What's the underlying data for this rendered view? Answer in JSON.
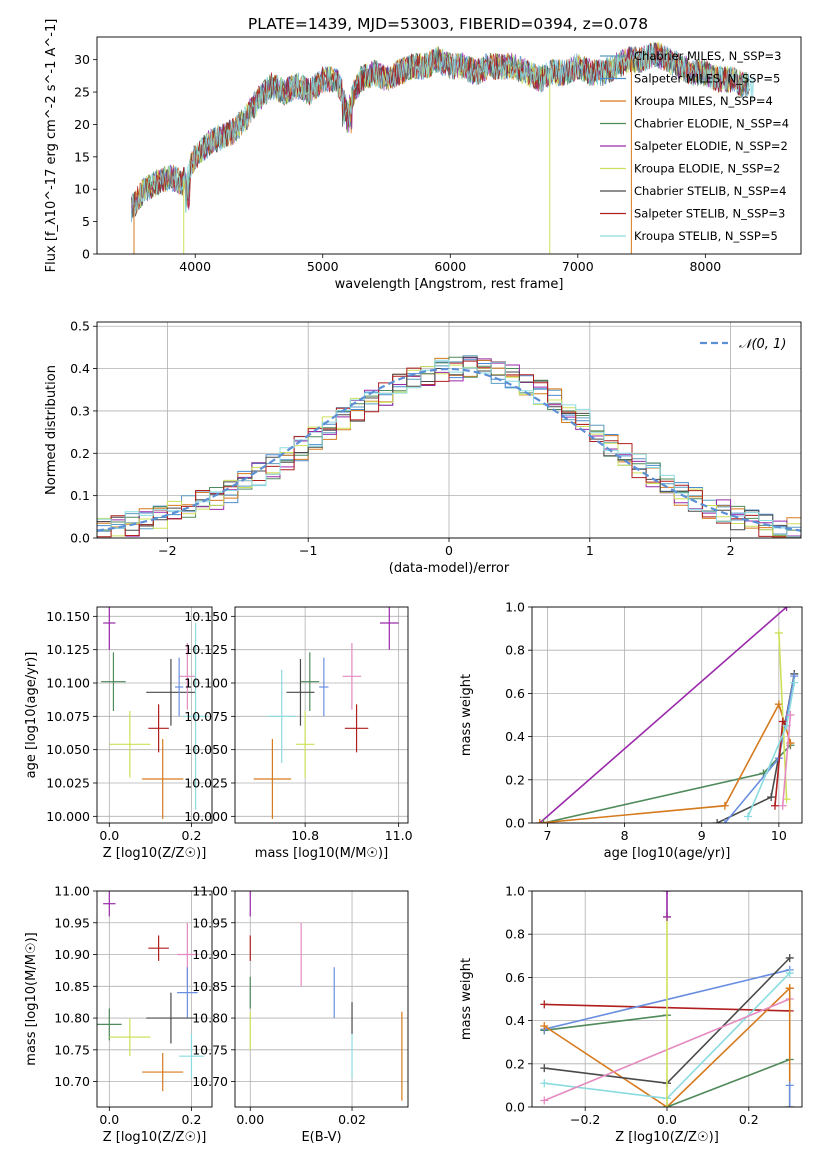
{
  "figure": {
    "title": "PLATE=1439, MJD=53003, FIBERID=0394, z=0.078",
    "colors": {
      "chabrier_miles": "#5b9cc0",
      "salpeter_miles": "#4a8ccf",
      "kroupa_miles": "#d67a1e",
      "chabrier_elodie": "#4f8a5a",
      "salpeter_elodie": "#9a2aaa",
      "kroupa_elodie": "#cfe05a",
      "chabrier_stelib": "#4a4a4a",
      "salpeter_stelib": "#b01e1e",
      "kroupa_stelib": "#8adbe0",
      "pink": "#e58ac0",
      "blue": "#6b8fe0",
      "normal_curve": "#5b8fd6"
    }
  },
  "chart_data": [
    {
      "type": "line",
      "panel": "spectrum",
      "xlabel": "wavelength [Angstrom, rest frame]",
      "ylabel": "Flux [f_λ10^-17 erg cm^-2 s^-1 A^-1]",
      "xlim": [
        3230,
        8750
      ],
      "ylim": [
        0,
        33.5
      ],
      "xticks": [
        "4000",
        "5000",
        "6000",
        "7000",
        "8000"
      ],
      "yticks": [
        "0",
        "5",
        "10",
        "15",
        "20",
        "25",
        "30"
      ],
      "legend_position": "upper-right",
      "legend": [
        {
          "name": "Chabrier MILES, N_SSP=3",
          "color_key": "chabrier_miles"
        },
        {
          "name": "Salpeter MILES, N_SSP=5",
          "color_key": "salpeter_miles"
        },
        {
          "name": "Kroupa MILES, N_SSP=4",
          "color_key": "kroupa_miles"
        },
        {
          "name": "Chabrier ELODIE, N_SSP=4",
          "color_key": "chabrier_elodie"
        },
        {
          "name": "Salpeter ELODIE, N_SSP=2",
          "color_key": "salpeter_elodie"
        },
        {
          "name": "Kroupa ELODIE, N_SSP=2",
          "color_key": "kroupa_elodie"
        },
        {
          "name": "Chabrier STELIB, N_SSP=4",
          "color_key": "chabrier_stelib"
        },
        {
          "name": "Salpeter STELIB, N_SSP=3",
          "color_key": "salpeter_stelib"
        },
        {
          "name": "Kroupa STELIB, N_SSP=5",
          "color_key": "kroupa_stelib"
        }
      ],
      "x": [
        3500,
        3600,
        3700,
        3800,
        3900,
        4000,
        4100,
        4200,
        4300,
        4400,
        4500,
        4600,
        4700,
        4800,
        4900,
        5000,
        5100,
        5200,
        5300,
        5400,
        5500,
        5600,
        5700,
        5800,
        5900,
        6000,
        6100,
        6200,
        6300,
        6400,
        6500,
        6600,
        6700,
        6800,
        6900,
        7000,
        7100,
        7200,
        7300,
        7400,
        7500,
        7600,
        7700,
        7800,
        7900,
        8000,
        8100,
        8200,
        8300
      ],
      "y": [
        7,
        10,
        11,
        12,
        11,
        15,
        17,
        18,
        19,
        21,
        24,
        26,
        25,
        26,
        25,
        27,
        27,
        23,
        27,
        28,
        27,
        28,
        29,
        29,
        30,
        29,
        29,
        28,
        29,
        29,
        29,
        28,
        27,
        28,
        28,
        29,
        28,
        28,
        29,
        30,
        30,
        31,
        30,
        29,
        28,
        28,
        27,
        27,
        26
      ],
      "drops": [
        {
          "x": 3520,
          "color_key": "kroupa_miles"
        },
        {
          "x": 3910,
          "color_key": "kroupa_elodie"
        },
        {
          "x": 6780,
          "color_key": "kroupa_elodie"
        },
        {
          "x": 7420,
          "color_key": "kroupa_miles"
        }
      ]
    },
    {
      "type": "line",
      "panel": "residual_histogram",
      "xlabel": "(data-model)/error",
      "ylabel": "Normed distribution",
      "xlim": [
        -2.5,
        2.5
      ],
      "ylim": [
        0,
        0.51
      ],
      "xticks": [
        "−2",
        "−1",
        "0",
        "1",
        "2"
      ],
      "yticks": [
        "0.0",
        "0.1",
        "0.2",
        "0.3",
        "0.4",
        "0.5"
      ],
      "grid": true,
      "legend_position": "upper-right",
      "legend": [
        {
          "name": "𝒩(0, 1)",
          "color_key": "normal_curve"
        }
      ],
      "bin_width": 0.1,
      "bin_start": -2.5
    },
    {
      "type": "scatter",
      "panel": "age_vs_Z",
      "xlabel": "Z [log10(Z/Z☉)]",
      "ylabel": "age  [log10(age/yr)]",
      "xlim": [
        -0.03,
        0.25
      ],
      "ylim": [
        9.995,
        10.157
      ],
      "xticks": [
        "0.0",
        "0.2"
      ],
      "yticks": [
        "10.000",
        "10.025",
        "10.050",
        "10.075",
        "10.100",
        "10.125",
        "10.150"
      ],
      "grid": true,
      "points": [
        {
          "x": 0.0,
          "y": 10.145,
          "xerr": 0.015,
          "yerr": 0.02,
          "color_key": "salpeter_elodie"
        },
        {
          "x": 0.01,
          "y": 10.101,
          "xerr": 0.03,
          "yerr": 0.022,
          "color_key": "chabrier_elodie"
        },
        {
          "x": 0.12,
          "y": 10.066,
          "xerr": 0.025,
          "yerr": 0.018,
          "color_key": "salpeter_stelib"
        },
        {
          "x": 0.15,
          "y": 10.093,
          "xerr": 0.06,
          "yerr": 0.025,
          "color_key": "chabrier_stelib"
        },
        {
          "x": 0.19,
          "y": 10.105,
          "xerr": 0.02,
          "yerr": 0.025,
          "color_key": "pink"
        },
        {
          "x": 0.17,
          "y": 10.097,
          "xerr": 0.01,
          "yerr": 0.022,
          "color_key": "blue"
        },
        {
          "x": 0.21,
          "y": 10.075,
          "xerr": 0.03,
          "yerr": 0.07,
          "color_key": "kroupa_stelib"
        },
        {
          "x": 0.05,
          "y": 10.054,
          "xerr": 0.05,
          "yerr": 0.025,
          "color_key": "kroupa_elodie"
        },
        {
          "x": 0.13,
          "y": 10.028,
          "xerr": 0.05,
          "yerr": 0.03,
          "color_key": "kroupa_miles"
        }
      ]
    },
    {
      "type": "scatter",
      "panel": "age_vs_mass",
      "xlabel": "mass [log10(M/M☉)]",
      "ylabel": "",
      "xlim": [
        10.65,
        11.02
      ],
      "ylim": [
        9.995,
        10.157
      ],
      "xticks": [
        "10.8",
        "11.0"
      ],
      "yticks": [
        "10.000",
        "10.025",
        "10.050",
        "10.075",
        "10.100",
        "10.125",
        "10.150"
      ],
      "grid": true,
      "points": [
        {
          "x": 10.98,
          "y": 10.145,
          "xerr": 0.02,
          "yerr": 0.02,
          "color_key": "salpeter_elodie"
        },
        {
          "x": 10.81,
          "y": 10.101,
          "xerr": 0.02,
          "yerr": 0.022,
          "color_key": "chabrier_elodie"
        },
        {
          "x": 10.91,
          "y": 10.066,
          "xerr": 0.025,
          "yerr": 0.018,
          "color_key": "salpeter_stelib"
        },
        {
          "x": 10.79,
          "y": 10.093,
          "xerr": 0.03,
          "yerr": 0.025,
          "color_key": "chabrier_stelib"
        },
        {
          "x": 10.9,
          "y": 10.105,
          "xerr": 0.02,
          "yerr": 0.025,
          "color_key": "pink"
        },
        {
          "x": 10.84,
          "y": 10.097,
          "xerr": 0.01,
          "yerr": 0.022,
          "color_key": "blue"
        },
        {
          "x": 10.75,
          "y": 10.075,
          "xerr": 0.03,
          "yerr": 0.035,
          "color_key": "kroupa_stelib"
        },
        {
          "x": 10.8,
          "y": 10.054,
          "xerr": 0.02,
          "yerr": 0.025,
          "color_key": "kroupa_elodie"
        },
        {
          "x": 10.73,
          "y": 10.028,
          "xerr": 0.04,
          "yerr": 0.03,
          "color_key": "kroupa_miles"
        }
      ]
    },
    {
      "type": "line",
      "panel": "mass_weight_vs_age",
      "xlabel": "age  [log10(age/yr)]",
      "ylabel": "mass weight",
      "xlim": [
        6.8,
        10.3
      ],
      "ylim": [
        0,
        1
      ],
      "xticks": [
        "7",
        "8",
        "9",
        "10"
      ],
      "yticks": [
        "0.0",
        "0.2",
        "0.4",
        "0.6",
        "0.8",
        "1.0"
      ],
      "grid": true,
      "series": [
        {
          "color_key": "salpeter_elodie",
          "x": [
            6.9,
            10.1
          ],
          "y": [
            0.0,
            1.0
          ]
        },
        {
          "color_key": "chabrier_elodie",
          "x": [
            6.95,
            9.8,
            10.15
          ],
          "y": [
            0.0,
            0.23,
            0.36
          ]
        },
        {
          "color_key": "kroupa_miles",
          "x": [
            6.9,
            9.3,
            10.0,
            10.15
          ],
          "y": [
            0.0,
            0.08,
            0.55,
            0.37
          ]
        },
        {
          "color_key": "chabrier_stelib",
          "x": [
            9.2,
            9.9,
            10.2
          ],
          "y": [
            0.0,
            0.12,
            0.69
          ]
        },
        {
          "color_key": "blue",
          "x": [
            9.3,
            10.0,
            10.2
          ],
          "y": [
            0.0,
            0.3,
            0.68
          ]
        },
        {
          "color_key": "kroupa_elodie",
          "x": [
            10.0,
            10.1
          ],
          "y": [
            0.88,
            0.11
          ]
        },
        {
          "color_key": "salpeter_stelib",
          "x": [
            9.95,
            10.05,
            10.1
          ],
          "y": [
            0.08,
            0.47,
            0.45
          ]
        },
        {
          "color_key": "kroupa_stelib",
          "x": [
            9.6,
            10.1,
            10.2
          ],
          "y": [
            0.03,
            0.45,
            0.65
          ]
        },
        {
          "color_key": "pink",
          "x": [
            10.05,
            10.15
          ],
          "y": [
            0.08,
            0.5
          ]
        }
      ]
    },
    {
      "type": "scatter",
      "panel": "mass_vs_Z",
      "xlabel": "Z [log10(Z/Z☉)]",
      "ylabel": "mass [log10(M/M☉)]",
      "xlim": [
        -0.03,
        0.25
      ],
      "ylim": [
        10.66,
        11.0
      ],
      "xticks": [
        "0.0",
        "0.2"
      ],
      "yticks": [
        "10.70",
        "10.75",
        "10.80",
        "10.85",
        "10.90",
        "10.95",
        "11.00"
      ],
      "grid": true,
      "points": [
        {
          "x": 0.0,
          "y": 10.98,
          "xerr": 0.015,
          "yerr": 0.02,
          "color_key": "salpeter_elodie"
        },
        {
          "x": 0.12,
          "y": 10.91,
          "xerr": 0.025,
          "yerr": 0.02,
          "color_key": "salpeter_stelib"
        },
        {
          "x": 0.19,
          "y": 10.9,
          "xerr": 0.025,
          "yerr": 0.05,
          "color_key": "pink"
        },
        {
          "x": 0.19,
          "y": 10.84,
          "xerr": 0.025,
          "yerr": 0.04,
          "color_key": "blue"
        },
        {
          "x": 0.0,
          "y": 10.79,
          "xerr": 0.03,
          "yerr": 0.025,
          "color_key": "chabrier_elodie"
        },
        {
          "x": 0.15,
          "y": 10.8,
          "xerr": 0.06,
          "yerr": 0.04,
          "color_key": "chabrier_stelib"
        },
        {
          "x": 0.2,
          "y": 10.74,
          "xerr": 0.03,
          "yerr": 0.035,
          "color_key": "kroupa_stelib"
        },
        {
          "x": 0.05,
          "y": 10.77,
          "xerr": 0.05,
          "yerr": 0.03,
          "color_key": "kroupa_elodie"
        },
        {
          "x": 0.13,
          "y": 10.715,
          "xerr": 0.05,
          "yerr": 0.03,
          "color_key": "kroupa_miles"
        }
      ]
    },
    {
      "type": "scatter",
      "panel": "mass_vs_ebv",
      "xlabel": "E(B-V)",
      "ylabel": "",
      "xlim": [
        -0.003,
        0.031
      ],
      "ylim": [
        10.66,
        11.0
      ],
      "xticks": [
        "0.00",
        "0.02"
      ],
      "yticks": [
        "10.70",
        "10.75",
        "10.80",
        "10.85",
        "10.90",
        "10.95",
        "11.00"
      ],
      "grid": true,
      "points": [
        {
          "x": 0.0,
          "y": 10.98,
          "yerr": 0.02,
          "color_key": "salpeter_elodie"
        },
        {
          "x": 0.0,
          "y": 10.91,
          "yerr": 0.02,
          "color_key": "salpeter_stelib"
        },
        {
          "x": 0.0,
          "y": 10.84,
          "yerr": 0.025,
          "color_key": "chabrier_elodie"
        },
        {
          "x": 0.0,
          "y": 10.78,
          "yerr": 0.03,
          "color_key": "kroupa_elodie"
        },
        {
          "x": 0.01,
          "y": 10.9,
          "yerr": 0.05,
          "color_key": "pink"
        },
        {
          "x": 0.0165,
          "y": 10.84,
          "yerr": 0.04,
          "color_key": "blue"
        },
        {
          "x": 0.02,
          "y": 10.8,
          "yerr": 0.025,
          "color_key": "chabrier_stelib"
        },
        {
          "x": 0.02,
          "y": 10.74,
          "yerr": 0.035,
          "color_key": "kroupa_stelib"
        },
        {
          "x": 0.0298,
          "y": 10.74,
          "yerr": 0.07,
          "color_key": "kroupa_miles"
        }
      ]
    },
    {
      "type": "line",
      "panel": "mass_weight_vs_Z",
      "xlabel": "Z [log10(Z/Z☉)]",
      "ylabel": "mass weight",
      "xlim": [
        -0.33,
        0.33
      ],
      "ylim": [
        0,
        1
      ],
      "xticks": [
        "−0.2",
        "0.0",
        "0.2"
      ],
      "yticks": [
        "0.0",
        "0.2",
        "0.4",
        "0.6",
        "0.8",
        "1.0"
      ],
      "grid": true,
      "series": [
        {
          "color_key": "salpeter_stelib",
          "x": [
            -0.3,
            0.3
          ],
          "y": [
            0.475,
            0.445
          ]
        },
        {
          "color_key": "chabrier_elodie",
          "x": [
            -0.3,
            0.0
          ],
          "y": [
            0.355,
            0.425
          ]
        },
        {
          "color_key": "blue",
          "x": [
            -0.3,
            0.3
          ],
          "y": [
            0.36,
            0.635
          ]
        },
        {
          "color_key": "kroupa_miles",
          "x": [
            -0.3,
            0.0,
            0.3
          ],
          "y": [
            0.375,
            0.0,
            0.55
          ]
        },
        {
          "color_key": "chabrier_stelib",
          "x": [
            -0.3,
            0.0,
            0.3
          ],
          "y": [
            0.18,
            0.11,
            0.69
          ]
        },
        {
          "color_key": "kroupa_stelib",
          "x": [
            -0.3,
            0.0,
            0.3
          ],
          "y": [
            0.11,
            0.04,
            0.62
          ]
        },
        {
          "color_key": "pink",
          "x": [
            -0.3,
            0.3
          ],
          "y": [
            0.03,
            0.5
          ]
        },
        {
          "color_key": "chabrier_elodie",
          "x": [
            0.0,
            0.3
          ],
          "y": [
            0.0,
            0.22
          ]
        },
        {
          "color_key": "kroupa_elodie",
          "x": [
            0.0,
            0.0
          ],
          "y": [
            0.0,
            0.88
          ]
        },
        {
          "color_key": "salpeter_elodie",
          "x": [
            0.0,
            0.0
          ],
          "y": [
            0.88,
            1.0
          ]
        },
        {
          "color_key": "kroupa_miles",
          "x": [
            0.3,
            0.3
          ],
          "y": [
            0.0,
            0.55
          ]
        },
        {
          "color_key": "blue",
          "x": [
            0.3,
            0.3
          ],
          "y": [
            0.0,
            0.1
          ]
        }
      ]
    }
  ]
}
